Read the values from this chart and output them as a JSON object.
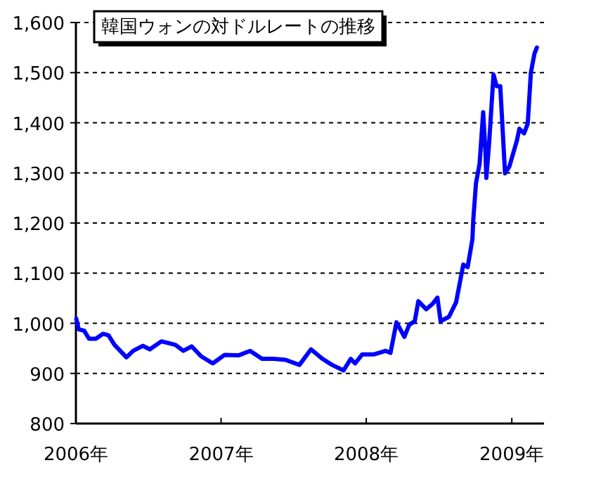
{
  "chart_data": {
    "type": "line",
    "title": "韓国ウォンの対ドルレートの推移",
    "x": [
      "2006-01-02",
      "2006-01-08",
      "2006-01-22",
      "2006-02-03",
      "2006-02-20",
      "2006-03-10",
      "2006-03-24",
      "2006-04-08",
      "2006-05-08",
      "2006-05-25",
      "2006-06-18",
      "2006-07-06",
      "2006-08-04",
      "2006-09-08",
      "2006-09-28",
      "2006-10-19",
      "2006-11-12",
      "2006-12-11",
      "2007-01-10",
      "2007-02-14",
      "2007-03-15",
      "2007-04-14",
      "2007-05-13",
      "2007-06-12",
      "2007-07-17",
      "2007-08-15",
      "2007-09-13",
      "2007-10-07",
      "2007-11-05",
      "2007-11-23",
      "2007-12-04",
      "2007-12-22",
      "2008-01-21",
      "2008-02-19",
      "2008-03-02",
      "2008-03-17",
      "2008-04-06",
      "2008-04-18",
      "2008-05-02",
      "2008-05-11",
      "2008-05-31",
      "2008-06-16",
      "2008-06-28",
      "2008-07-06",
      "2008-07-27",
      "2008-08-14",
      "2008-09-01",
      "2008-09-12",
      "2008-09-24",
      "2008-09-26",
      "2008-10-03",
      "2008-10-12",
      "2008-10-21",
      "2008-10-27",
      "2008-10-29",
      "2008-11-05",
      "2008-11-16",
      "2008-11-24",
      "2008-12-03",
      "2008-12-15",
      "2008-12-26",
      "2009-01-14",
      "2009-01-20",
      "2009-02-01",
      "2009-02-10",
      "2009-02-18",
      "2009-02-27",
      "2009-03-05"
    ],
    "series": [
      {
        "color": "#0000ff",
        "values": [
          1009,
          988,
          985,
          969,
          969,
          979,
          976,
          957,
          932,
          945,
          955,
          948,
          964,
          957,
          945,
          954,
          934,
          920,
          937,
          936,
          945,
          929,
          929,
          927,
          917,
          948,
          929,
          917,
          906,
          929,
          920,
          938,
          938,
          945,
          941,
          1002,
          973,
          997,
          1004,
          1044,
          1028,
          1039,
          1051,
          1004,
          1013,
          1042,
          1117,
          1112,
          1168,
          1205,
          1280,
          1318,
          1421,
          1337,
          1290,
          1360,
          1496,
          1473,
          1473,
          1299,
          1313,
          1365,
          1388,
          1379,
          1398,
          1500,
          1538,
          1550
        ]
      }
    ],
    "xlim": [
      "2006-01-01",
      "2009-03-23"
    ],
    "xticks": [
      {
        "value": "2006-01-01",
        "label": "2006年"
      },
      {
        "value": "2007-01-01",
        "label": "2007年"
      },
      {
        "value": "2008-01-01",
        "label": "2008年"
      },
      {
        "value": "2009-01-01",
        "label": "2009年"
      }
    ],
    "ylim": [
      800,
      1600
    ],
    "yticks": [
      {
        "value": 800,
        "label": "800"
      },
      {
        "value": 900,
        "label": "900"
      },
      {
        "value": 1000,
        "label": "1,000"
      },
      {
        "value": 1100,
        "label": "1,100"
      },
      {
        "value": 1200,
        "label": "1,200"
      },
      {
        "value": 1300,
        "label": "1,300"
      },
      {
        "value": 1400,
        "label": "1,400"
      },
      {
        "value": 1500,
        "label": "1,500"
      },
      {
        "value": 1600,
        "label": "1,600"
      }
    ],
    "grid": "y",
    "line_style": "solid"
  }
}
